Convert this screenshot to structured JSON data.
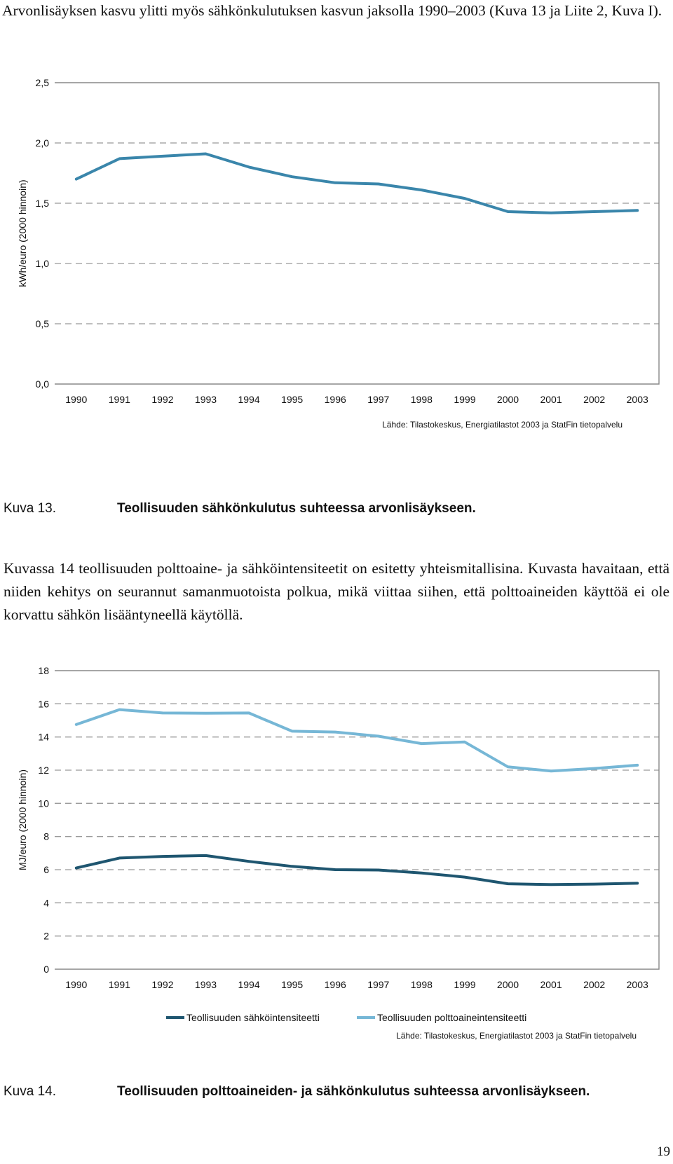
{
  "intro_text": "Arvonlisäyksen kasvu ylitti myös sähkönkulutuksen kasvun jaksolla 1990–2003 (Kuva 13 ja Liite 2, Kuva I).",
  "figure13": {
    "number": "Kuva 13.",
    "title": "Teollisuuden sähkönkulutus suhteessa arvonlisäykseen."
  },
  "paragraph": "Kuvassa 14 teollisuuden polttoaine- ja sähköintensiteetit on esitetty yhteismitallisina. Kuvasta havaitaan, että niiden kehitys on seurannut samanmuotoista polkua, mikä viittaa siihen, että polttoaineiden käyttöä ei ole korvattu sähkön lisääntyneellä käytöllä.",
  "figure14": {
    "number": "Kuva 14.",
    "title": "Teollisuuden polttoaineiden- ja sähkönkulutus suhteessa arvonlisäykseen."
  },
  "page_number": "19",
  "colors": {
    "series_dark": "#1f5670",
    "series_mid": "#3a86ab",
    "series_light": "#76b7d6",
    "grid": "#999999",
    "frame": "#888888"
  },
  "chart_data": [
    {
      "type": "line",
      "title": "",
      "xlabel": "",
      "ylabel": "kWh/euro (2000 hinnoin)",
      "categories": [
        "1990",
        "1991",
        "1992",
        "1993",
        "1994",
        "1995",
        "1996",
        "1997",
        "1998",
        "1999",
        "2000",
        "2001",
        "2002",
        "2003"
      ],
      "ylim": [
        0,
        2.5
      ],
      "yticks": [
        "0,0",
        "0,5",
        "1,0",
        "1,5",
        "2,0",
        "2,5"
      ],
      "grid": true,
      "source": "Lähde: Tilastokeskus, Energiatilastot 2003 ja StatFin tietopalvelu",
      "series": [
        {
          "name": "",
          "color": "#3a86ab",
          "values": [
            1.7,
            1.87,
            1.89,
            1.91,
            1.8,
            1.72,
            1.67,
            1.66,
            1.61,
            1.54,
            1.43,
            1.42,
            1.43,
            1.44
          ]
        }
      ]
    },
    {
      "type": "line",
      "title": "",
      "xlabel": "",
      "ylabel": "MJ/euro (2000 hinnoin)",
      "categories": [
        "1990",
        "1991",
        "1992",
        "1993",
        "1994",
        "1995",
        "1996",
        "1997",
        "1998",
        "1999",
        "2000",
        "2001",
        "2002",
        "2003"
      ],
      "ylim": [
        0,
        18
      ],
      "yticks": [
        "0",
        "2",
        "4",
        "6",
        "8",
        "10",
        "12",
        "14",
        "16",
        "18"
      ],
      "grid": true,
      "legend_position": "bottom",
      "source": "Lähde: Tilastokeskus, Energiatilastot 2003 ja StatFin tietopalvelu",
      "series": [
        {
          "name": "Teollisuuden sähköintensiteetti",
          "color": "#1f5670",
          "values": [
            6.1,
            6.7,
            6.8,
            6.85,
            6.5,
            6.2,
            6.0,
            5.98,
            5.8,
            5.55,
            5.15,
            5.1,
            5.13,
            5.18
          ]
        },
        {
          "name": "Teollisuuden polttoaineintensiteetti",
          "color": "#76b7d6",
          "values": [
            14.75,
            15.65,
            15.45,
            15.43,
            15.45,
            14.35,
            14.3,
            14.05,
            13.6,
            13.7,
            12.2,
            11.95,
            12.1,
            12.3
          ]
        }
      ]
    }
  ]
}
